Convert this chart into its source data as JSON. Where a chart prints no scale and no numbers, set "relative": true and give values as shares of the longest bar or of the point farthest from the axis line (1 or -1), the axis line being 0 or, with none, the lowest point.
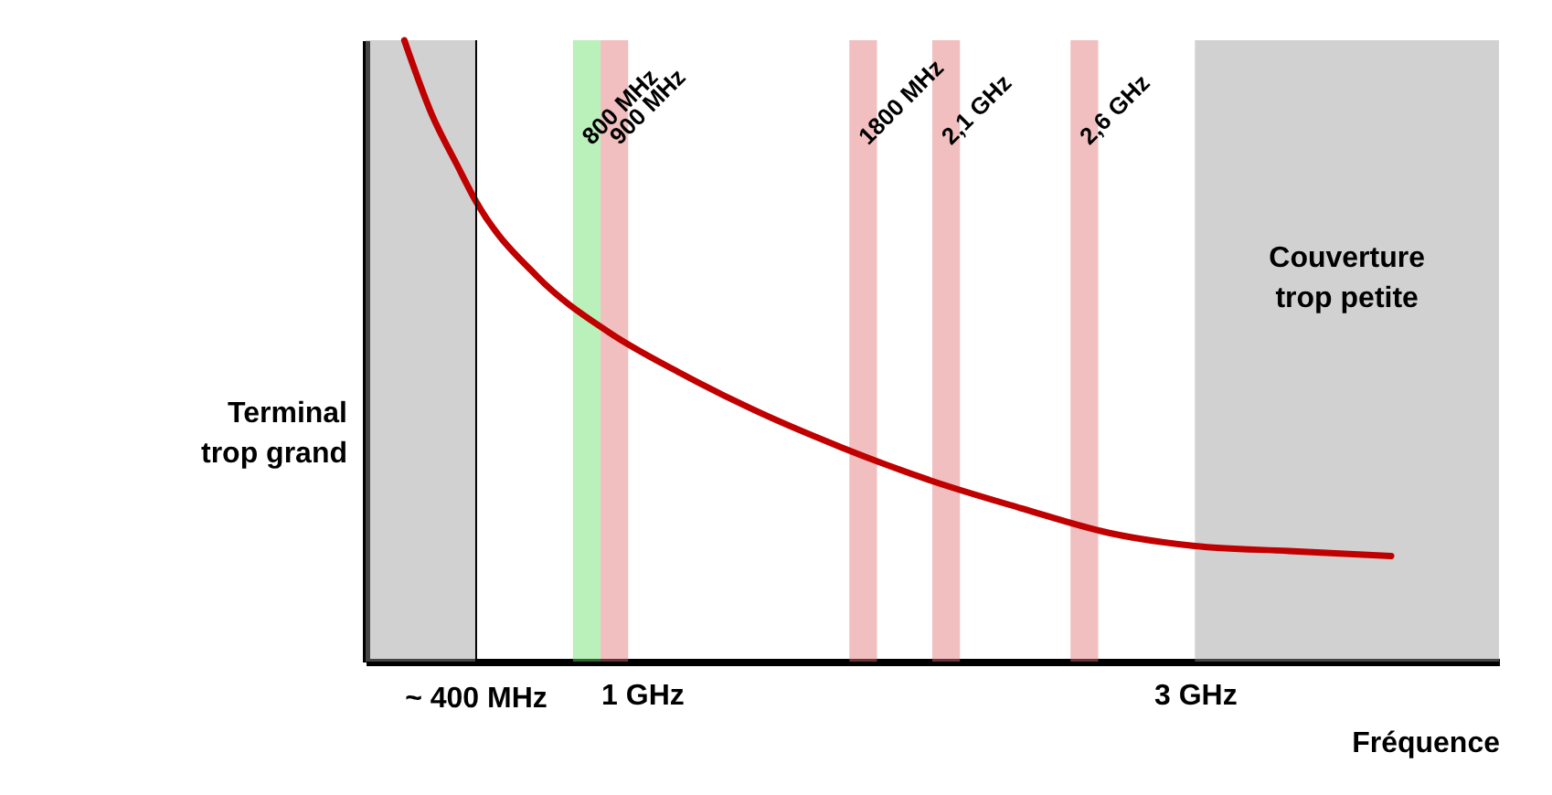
{
  "chart_data": {
    "type": "line",
    "relative": true,
    "color": "#c00000",
    "x": [
      0.14,
      0.24,
      0.33,
      0.4,
      0.62,
      0.88,
      1.14,
      1.4,
      1.72,
      2.04,
      2.37,
      2.69,
      3,
      3.34,
      3.71
    ],
    "values": [
      1.0,
      0.88,
      0.8,
      0.74,
      0.62,
      0.53,
      0.464,
      0.406,
      0.345,
      0.292,
      0.247,
      0.207,
      0.186,
      0.178,
      0.17
    ],
    "xlim": [
      0,
      4.1
    ],
    "xticks": [
      {
        "value": 1,
        "label": "1 GHz"
      },
      {
        "value": 3,
        "label": "3 GHz"
      }
    ],
    "ref_lines": [
      {
        "axis": "x",
        "value": 0.4,
        "label": "~ 400 MHz",
        "color": "#000000"
      }
    ],
    "xlabel": "Fréquence",
    "bands": [
      {
        "axis": "x",
        "from": 0,
        "to": 0.4,
        "label": "Terminal\ntrop grand",
        "color": "#9a9a9a"
      },
      {
        "axis": "x",
        "from": 0.75,
        "to": 0.85,
        "label": "800 MHz",
        "color": "#66dd66"
      },
      {
        "axis": "x",
        "from": 0.85,
        "to": 0.95,
        "label": "900 MHz",
        "color": "#e07070"
      },
      {
        "axis": "x",
        "from": 1.75,
        "to": 1.85,
        "label": "1800 MHz",
        "color": "#e07070"
      },
      {
        "axis": "x",
        "from": 2.05,
        "to": 2.15,
        "label": "2,1 GHz",
        "color": "#e07070"
      },
      {
        "axis": "x",
        "from": 2.55,
        "to": 2.65,
        "label": "2,6 GHz",
        "color": "#e07070"
      },
      {
        "axis": "x",
        "from": 3,
        "to": 4.1,
        "label": "Couverture\ntrop petite",
        "color": "#9a9a9a"
      }
    ]
  }
}
